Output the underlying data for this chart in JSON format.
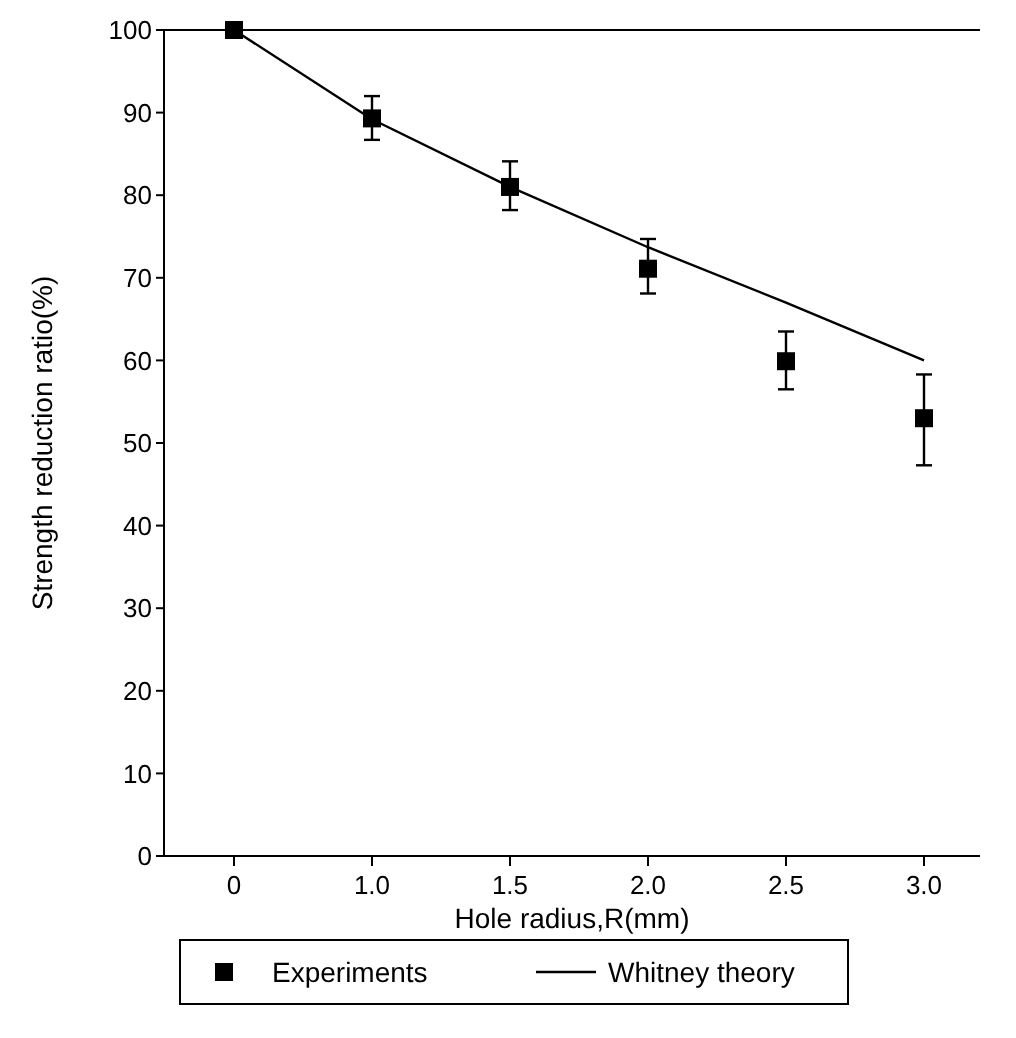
{
  "chart_data": {
    "type": "scatter",
    "xlabel": "Hole radius,R(mm)",
    "ylabel": "Strength reduction ratio(%)",
    "categories": [
      "0",
      "1.0",
      "1.5",
      "2.0",
      "2.5",
      "3.0"
    ],
    "series": [
      {
        "name": "Experiments",
        "color": "#000000",
        "marker": "square",
        "values": [
          100,
          89.3,
          81,
          71.1,
          59.9,
          53
        ],
        "errors": [
          null,
          [
            86.7,
            92
          ],
          [
            78.2,
            84.1
          ],
          [
            68.1,
            74.7
          ],
          [
            56.5,
            63.5
          ],
          [
            47.3,
            58.3
          ]
        ]
      },
      {
        "name": "Whitney theory",
        "type": "line",
        "color": "#000000",
        "marker": "none",
        "line_style": "solid",
        "values": [
          100,
          89.2,
          81,
          73.7,
          67,
          60
        ]
      }
    ],
    "ylim": [
      0,
      100
    ],
    "yticks": [
      0,
      10,
      20,
      30,
      40,
      50,
      60,
      70,
      80,
      90,
      100
    ],
    "grid": false,
    "legend": "bottom"
  }
}
